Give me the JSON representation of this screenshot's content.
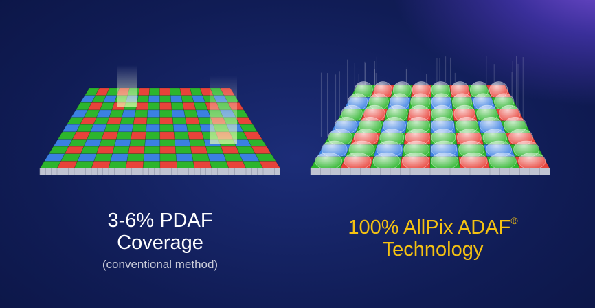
{
  "left": {
    "title_line1": "3-6% PDAF",
    "title_line2": "Coverage",
    "subtitle": "(conventional method)"
  },
  "right": {
    "title_line1": "100% AllPix ADAF",
    "trademark": "®",
    "title_line2": "Technology"
  }
}
